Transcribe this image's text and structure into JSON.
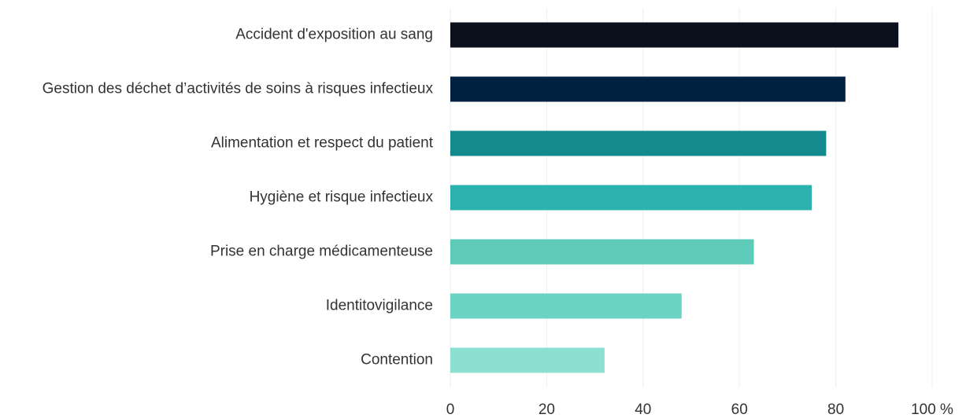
{
  "chart_data": {
    "type": "barh",
    "categories": [
      "Accident d'exposition au sang",
      "Gestion des déchet d’activités de soins à risques infectieux",
      "Alimentation et respect du patient",
      "Hygiène et risque infectieux",
      "Prise en charge médicamenteuse",
      "Identitovigilance",
      "Contention"
    ],
    "values": [
      93,
      82,
      78,
      75,
      63,
      48,
      32
    ],
    "colors": [
      "#0b101c",
      "#002240",
      "#138a8c",
      "#2bb2ae",
      "#5ecbb8",
      "#6cd2c1",
      "#8ddfd1"
    ],
    "xlim": [
      0,
      100
    ],
    "xticks": [
      0,
      20,
      40,
      60,
      80,
      {
        "value": 100,
        "label": "100 %"
      }
    ],
    "grid": true
  }
}
